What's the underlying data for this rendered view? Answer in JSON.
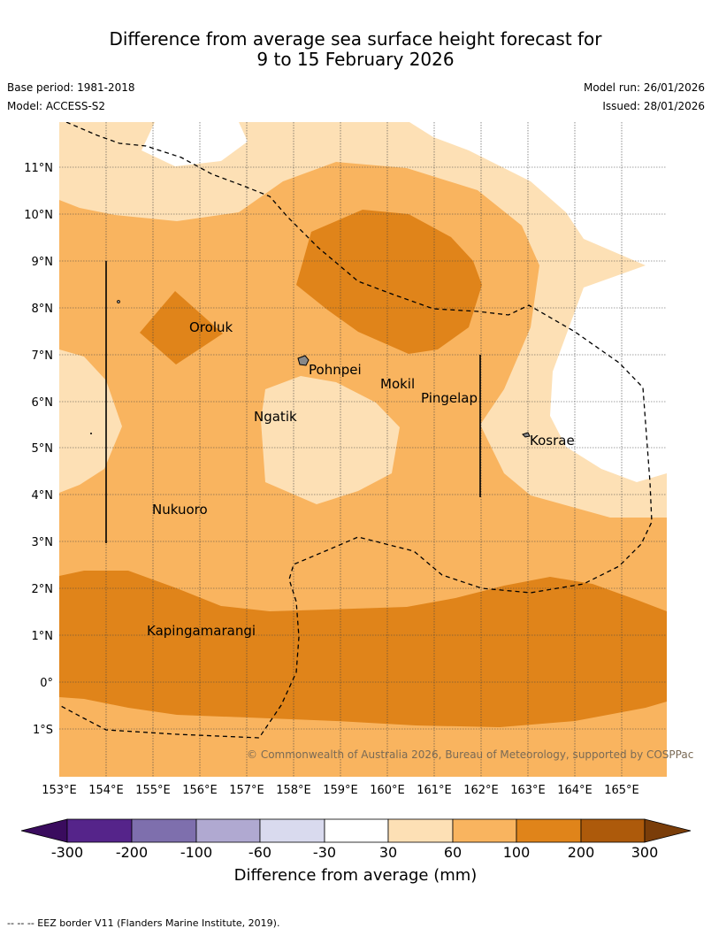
{
  "title_line1": "Difference from average sea surface height forecast for",
  "title_line2": "9 to 15 February 2026",
  "base_period": "Base period: 1981-2018",
  "model": "Model: ACCESS-S2",
  "model_run": "Model run: 26/01/2026",
  "issued": "Issued: 28/01/2026",
  "copyright": "© Commonwealth of Australia 2026, Bureau of Meteorology, supported by COSPPac",
  "latitude_labels": [
    "11°N",
    "10°N",
    "9°N",
    "8°N",
    "7°N",
    "6°N",
    "5°N",
    "4°N",
    "3°N",
    "2°N",
    "1°N",
    "0°",
    "1°S"
  ],
  "longitude_labels": [
    "153°E",
    "154°E",
    "155°E",
    "156°E",
    "157°E",
    "158°E",
    "159°E",
    "160°E",
    "161°E",
    "162°E",
    "163°E",
    "164°E",
    "165°E"
  ],
  "places": [
    "Oroluk",
    "Pohnpei",
    "Mokil",
    "Pingelap",
    "Ngatik",
    "Kosrae",
    "Nukuoro",
    "Kapingamarangi"
  ],
  "colorbar": {
    "ticks": [
      "-300",
      "-200",
      "-100",
      "-60",
      "-30",
      "30",
      "60",
      "100",
      "200",
      "300"
    ],
    "colors": [
      "#3a0c5e",
      "#55248a",
      "#7e6fad",
      "#b0a9d1",
      "#d9daee",
      "#ffffff",
      "#fde0b5",
      "#f9b45f",
      "#e0841a",
      "#ad5a0b",
      "#7a3d09"
    ],
    "label": "Difference from average (mm)"
  },
  "eez_note": "--  --  -- EEZ border V11 (Flanders Marine Institute, 2019)."
}
